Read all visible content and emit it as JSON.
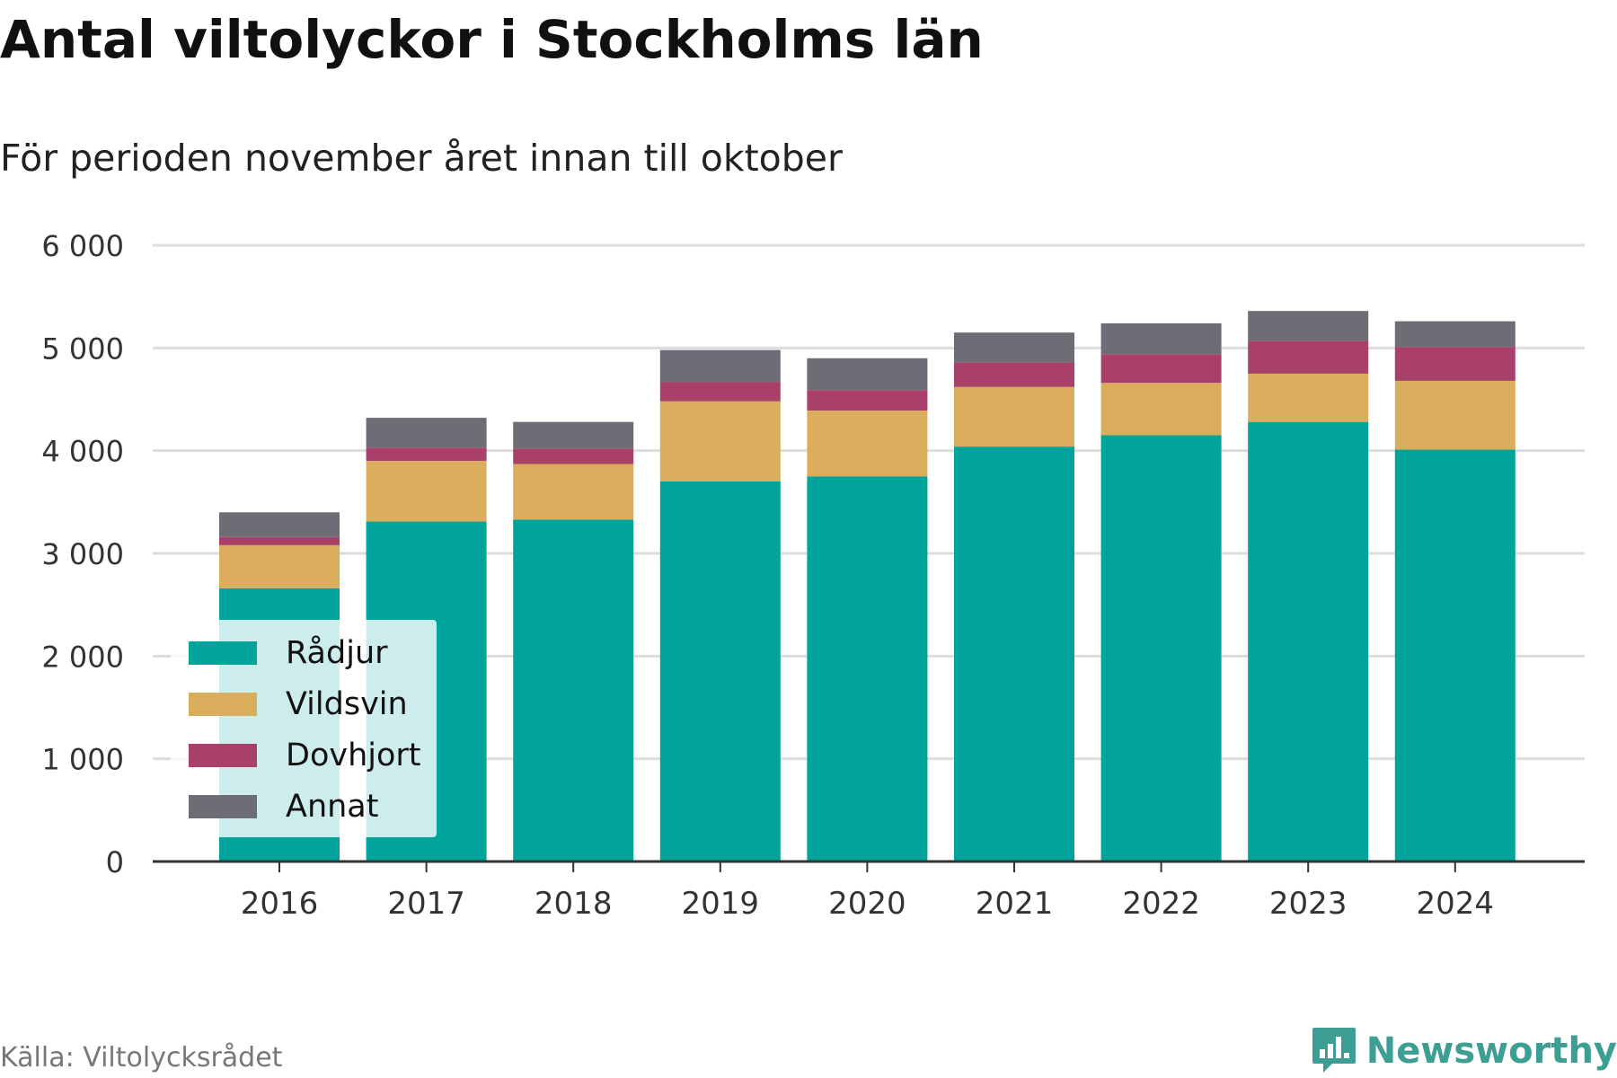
{
  "title": "Antal viltolyckor i Stockholms län",
  "subtitle": "För perioden november året innan till oktober",
  "source": "Källa: Viltolycksrådet",
  "brand": {
    "name": "Newsworthy",
    "icon": "newsworthy-logo-icon",
    "color": "#3d9e93"
  },
  "chart_data": {
    "type": "bar",
    "stacked": true,
    "categories": [
      "2016",
      "2017",
      "2018",
      "2019",
      "2020",
      "2021",
      "2022",
      "2023",
      "2024"
    ],
    "series": [
      {
        "name": "Rådjur",
        "color": "#00a49a",
        "values": [
          2660,
          3310,
          3330,
          3700,
          3750,
          4040,
          4150,
          4280,
          4010
        ]
      },
      {
        "name": "Vildsvin",
        "color": "#d9ad5b",
        "values": [
          420,
          590,
          540,
          780,
          640,
          580,
          510,
          470,
          670
        ]
      },
      {
        "name": "Dovhjort",
        "color": "#a9406a",
        "values": [
          80,
          130,
          150,
          190,
          200,
          240,
          280,
          320,
          330
        ]
      },
      {
        "name": "Annat",
        "color": "#6e6c74",
        "values": [
          240,
          290,
          260,
          310,
          310,
          290,
          300,
          290,
          250
        ]
      }
    ],
    "ylim": [
      0,
      6000
    ],
    "yticks": [
      0,
      1000,
      2000,
      3000,
      4000,
      5000,
      6000
    ],
    "ytick_labels": [
      "0",
      "1 000",
      "2 000",
      "3 000",
      "4 000",
      "5 000",
      "6 000"
    ],
    "xlabel": "",
    "ylabel": "",
    "grid": true,
    "legend_position": "bottom-left"
  }
}
